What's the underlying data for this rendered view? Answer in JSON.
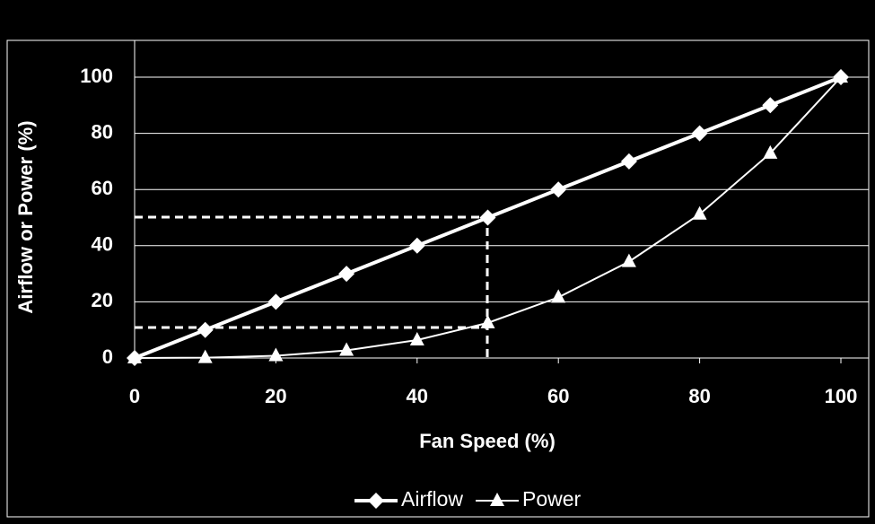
{
  "chart_data": {
    "type": "line",
    "x": [
      0,
      10,
      20,
      30,
      40,
      50,
      60,
      70,
      80,
      90,
      100
    ],
    "series": [
      {
        "name": "Airflow",
        "color": "#ffffff",
        "marker": "diamond",
        "values": [
          0,
          10,
          20,
          30,
          40,
          50,
          60,
          70,
          80,
          90,
          100
        ]
      },
      {
        "name": "Power",
        "color": "#ffffff",
        "marker": "triangle",
        "values": [
          0,
          0.1,
          0.8,
          2.7,
          6.4,
          12.5,
          21.6,
          34.3,
          51.2,
          72.9,
          100
        ]
      }
    ],
    "x_label": "Fan Speed (%)",
    "y_label": "Airflow or Power (%)",
    "xlim": [
      0,
      100
    ],
    "xticks": [
      0,
      20,
      40,
      60,
      80,
      100
    ],
    "ylim": [
      0,
      100
    ],
    "yticks": [
      0,
      20,
      40,
      60,
      80,
      100
    ],
    "grid": true,
    "legend": "bottom"
  }
}
